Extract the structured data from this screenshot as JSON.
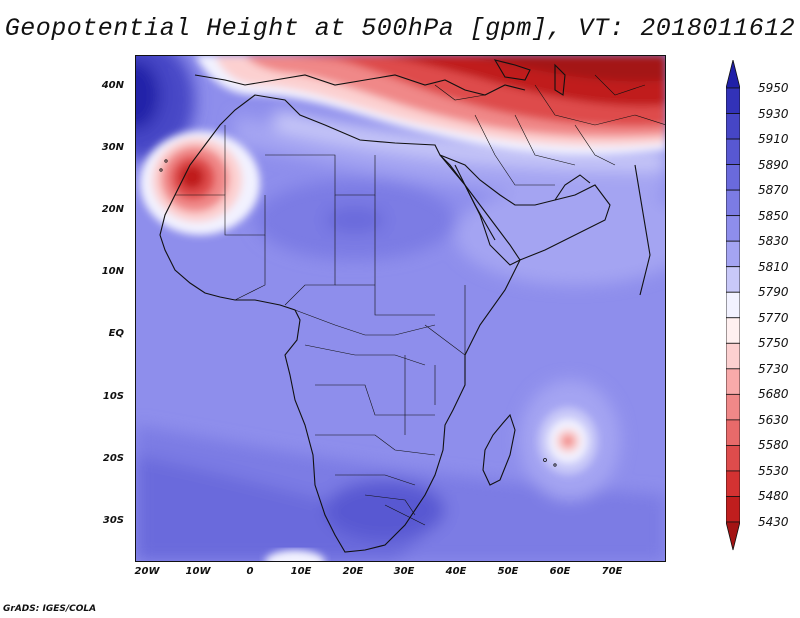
{
  "title": "Geopotential Height at 500hPa [gpm], VT: 2018011612",
  "map": {
    "lat_ticks": [
      "40N",
      "30N",
      "20N",
      "10N",
      "EQ",
      "10S",
      "20S",
      "30S"
    ],
    "lon_ticks": [
      "20W",
      "10W",
      "0",
      "10E",
      "20E",
      "30E",
      "40E",
      "50E",
      "60E",
      "70E"
    ]
  },
  "colorbar": {
    "levels": [
      "5950",
      "5930",
      "5910",
      "5890",
      "5870",
      "5850",
      "5830",
      "5810",
      "5790",
      "5770",
      "5750",
      "5730",
      "5680",
      "5630",
      "5580",
      "5530",
      "5480",
      "5430"
    ],
    "colors": [
      "#2020a8",
      "#3232b8",
      "#4646c6",
      "#5858d2",
      "#6a6adc",
      "#7c7ce4",
      "#8e8eec",
      "#a4a4f2",
      "#c8c8f8",
      "#f2f2ff",
      "#fff0f0",
      "#fcd0d0",
      "#f8aaaa",
      "#f08888",
      "#e86a6a",
      "#de4c4c",
      "#d43232",
      "#c01e1e",
      "#a41414"
    ]
  },
  "credit": "GrADS: IGES/COLA"
}
